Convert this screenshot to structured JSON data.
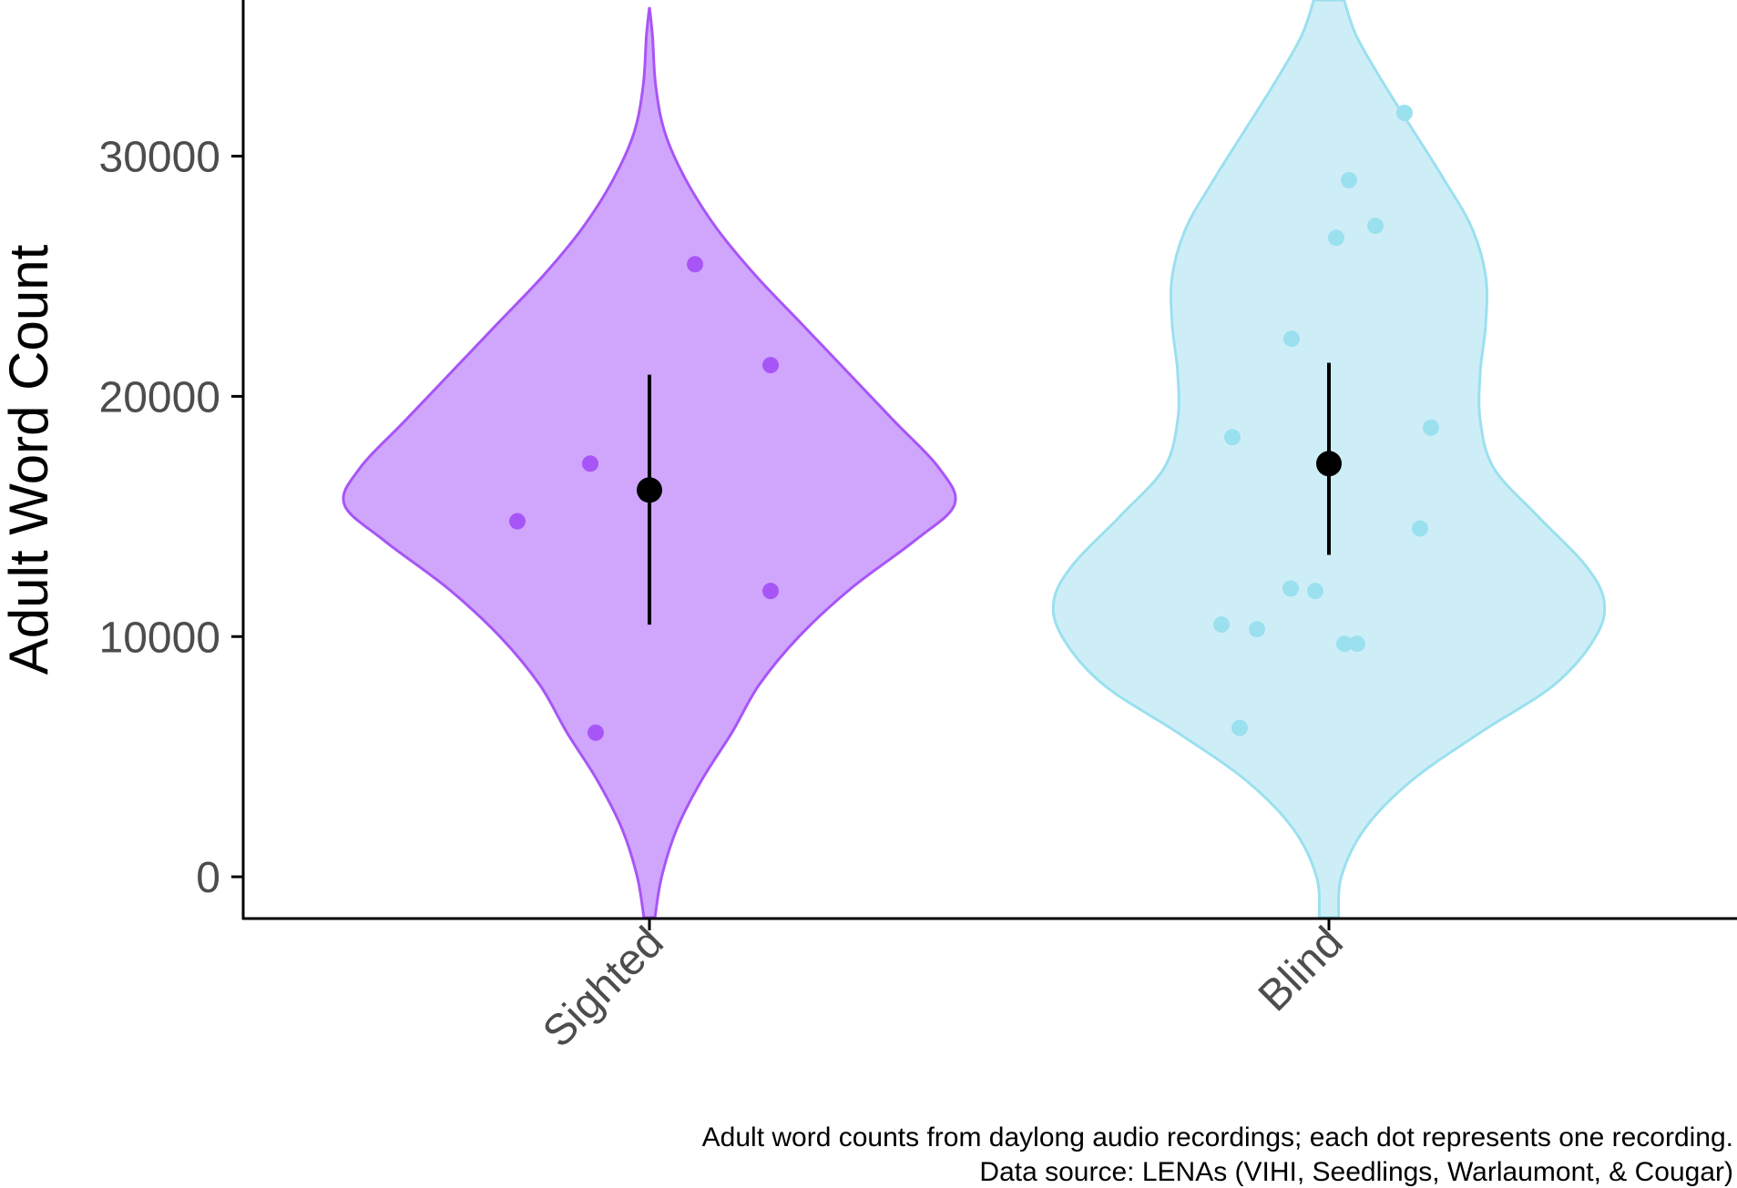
{
  "chart_data": {
    "type": "violin",
    "title": "",
    "xlabel": "",
    "ylabel": "Adult Word Count",
    "ylim": [
      -1700,
      36500
    ],
    "yticks": [
      0,
      10000,
      20000,
      30000
    ],
    "ytick_labels": [
      "0",
      "10000",
      "20000",
      "30000"
    ],
    "grid": false,
    "legend": "none",
    "categories": [
      "Sighted",
      "Blind"
    ],
    "groups": [
      {
        "name": "Sighted",
        "color": "#a855f7",
        "fill": "#cfa6fc",
        "points": [
          14800,
          17200,
          6000,
          25500,
          21300,
          11900
        ],
        "mean": 16100,
        "error_low": 10500,
        "error_high": 20900,
        "violin_profile": [
          {
            "y": -1700,
            "w": 0.018
          },
          {
            "y": 0,
            "w": 0.04
          },
          {
            "y": 2000,
            "w": 0.09
          },
          {
            "y": 4000,
            "w": 0.17
          },
          {
            "y": 6000,
            "w": 0.27
          },
          {
            "y": 8000,
            "w": 0.36
          },
          {
            "y": 10000,
            "w": 0.49
          },
          {
            "y": 12000,
            "w": 0.66
          },
          {
            "y": 14000,
            "w": 0.87
          },
          {
            "y": 15500,
            "w": 1.0
          },
          {
            "y": 17000,
            "w": 0.95
          },
          {
            "y": 19000,
            "w": 0.8
          },
          {
            "y": 21000,
            "w": 0.65
          },
          {
            "y": 23000,
            "w": 0.5
          },
          {
            "y": 25000,
            "w": 0.35
          },
          {
            "y": 27000,
            "w": 0.22
          },
          {
            "y": 29000,
            "w": 0.12
          },
          {
            "y": 31000,
            "w": 0.05
          },
          {
            "y": 33000,
            "w": 0.02
          },
          {
            "y": 35000,
            "w": 0.01
          },
          {
            "y": 36200,
            "w": 0.0
          }
        ]
      },
      {
        "name": "Blind",
        "color": "#9be0ef",
        "fill": "#ceeef7",
        "points": [
          10500,
          10300,
          6200,
          18300,
          12000,
          11900,
          22400,
          9700,
          9700,
          26600,
          29000,
          27100,
          31800,
          18700,
          14500
        ],
        "mean": 17200,
        "error_low": 13400,
        "error_high": 21400,
        "violin_profile": [
          {
            "y": -1700,
            "w": 0.035
          },
          {
            "y": 0,
            "w": 0.045
          },
          {
            "y": 2000,
            "w": 0.13
          },
          {
            "y": 4000,
            "w": 0.3
          },
          {
            "y": 6000,
            "w": 0.55
          },
          {
            "y": 8000,
            "w": 0.82
          },
          {
            "y": 10000,
            "w": 0.97
          },
          {
            "y": 11500,
            "w": 1.0
          },
          {
            "y": 13000,
            "w": 0.93
          },
          {
            "y": 15000,
            "w": 0.76
          },
          {
            "y": 17000,
            "w": 0.6
          },
          {
            "y": 19000,
            "w": 0.55
          },
          {
            "y": 21000,
            "w": 0.55
          },
          {
            "y": 23000,
            "w": 0.57
          },
          {
            "y": 25000,
            "w": 0.57
          },
          {
            "y": 27000,
            "w": 0.52
          },
          {
            "y": 29000,
            "w": 0.42
          },
          {
            "y": 31000,
            "w": 0.31
          },
          {
            "y": 33000,
            "w": 0.2
          },
          {
            "y": 35000,
            "w": 0.1
          },
          {
            "y": 36500,
            "w": 0.055
          }
        ]
      }
    ],
    "caption_lines": [
      "Adult word counts from daylong audio recordings; each dot represents one recording.",
      "Data source: LENAs (VIHI, Seedlings, Warlaumont, & Cougar)"
    ]
  }
}
